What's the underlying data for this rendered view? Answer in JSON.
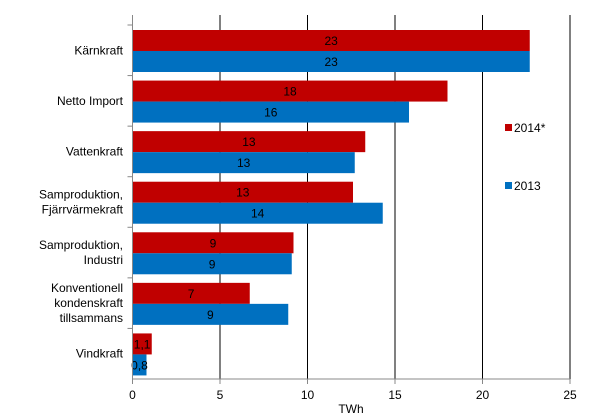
{
  "chart_data": {
    "type": "bar",
    "orientation": "horizontal",
    "categories": [
      [
        "Kärnkraft"
      ],
      [
        "Netto Import"
      ],
      [
        "Vattenkraft"
      ],
      [
        "Samproduktion,",
        "Fjärrvärmekraft"
      ],
      [
        "Samproduktion,",
        "Industri"
      ],
      [
        "Konventionell",
        "kondenskraft",
        "tillsammans"
      ],
      [
        "Vindkraft"
      ]
    ],
    "series": [
      {
        "name": "2014*",
        "color": "#c00000",
        "values": [
          22.7,
          18.0,
          13.3,
          12.6,
          9.2,
          6.7,
          1.1
        ],
        "labels": [
          "23",
          "18",
          "13",
          "13",
          "9",
          "7",
          "1,1"
        ]
      },
      {
        "name": "2013",
        "color": "#0070c0",
        "values": [
          22.7,
          15.8,
          12.7,
          14.3,
          9.1,
          8.9,
          0.8
        ],
        "labels": [
          "23",
          "16",
          "13",
          "14",
          "9",
          "9",
          "0,8"
        ]
      }
    ],
    "xlabel": "TWh",
    "xlim": [
      0,
      25
    ],
    "xticks": [
      "0",
      "5",
      "10",
      "15",
      "20",
      "25"
    ],
    "grid": "vertical",
    "legend": "right"
  }
}
